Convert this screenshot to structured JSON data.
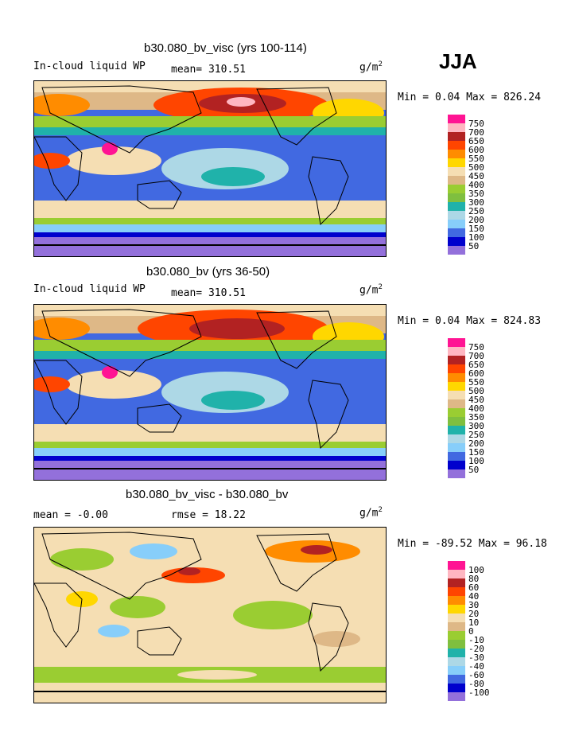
{
  "season": "JJA",
  "panels": [
    {
      "title": "b30.080_bv_visc (yrs 100-114)",
      "left_label": "In-cloud liquid WP",
      "mean_label": "mean= 310.51",
      "units_base": "g/m",
      "units_exp": "2",
      "min_label": "Min =",
      "min_value": "0.04",
      "max_label": "Max =",
      "max_value": "826.24",
      "legend_labels": [
        "750",
        "700",
        "650",
        "600",
        "550",
        "500",
        "450",
        "400",
        "350",
        "300",
        "250",
        "200",
        "150",
        "100",
        "50"
      ]
    },
    {
      "title": "b30.080_bv (yrs 36-50)",
      "left_label": "In-cloud liquid WP",
      "mean_label": "mean= 310.51",
      "units_base": "g/m",
      "units_exp": "2",
      "min_label": "Min =",
      "min_value": "0.04",
      "max_label": "Max =",
      "max_value": "824.83",
      "legend_labels": [
        "750",
        "700",
        "650",
        "600",
        "550",
        "500",
        "450",
        "400",
        "350",
        "300",
        "250",
        "200",
        "150",
        "100",
        "50"
      ]
    },
    {
      "title": "b30.080_bv_visc - b30.080_bv",
      "left_label": "mean =   -0.00",
      "mean_label": "rmse =   18.22",
      "units_base": "g/m",
      "units_exp": "2",
      "min_label": "Min =",
      "min_value": "-89.52",
      "max_label": "Max =",
      "max_value": "96.18",
      "legend_labels": [
        "100",
        "80",
        "60",
        "40",
        "30",
        "20",
        "10",
        "0",
        "-10",
        "-20",
        "-30",
        "-40",
        "-60",
        "-80",
        "-100"
      ]
    }
  ],
  "colors": {
    "legend_scale": [
      "#ff1493",
      "#ffb6c1",
      "#b22222",
      "#ff4500",
      "#ff8c00",
      "#ffd700",
      "#f5deb3",
      "#deb887",
      "#9acd32",
      "#7fbf3f",
      "#20b2aa",
      "#add8e6",
      "#87cefa",
      "#4169e1",
      "#0000cd",
      "#9370db"
    ],
    "ocean_base": "#4169e1",
    "coast": "#000000"
  },
  "chart_data": [
    {
      "type": "heatmap",
      "title": "b30.080_bv_visc (yrs 100-114)",
      "variable": "In-cloud liquid WP",
      "units": "g/m2",
      "mean": 310.51,
      "min": 0.04,
      "max": 826.24,
      "levels": [
        50,
        100,
        150,
        200,
        250,
        300,
        350,
        400,
        450,
        500,
        550,
        600,
        650,
        700,
        750
      ]
    },
    {
      "type": "heatmap",
      "title": "b30.080_bv (yrs 36-50)",
      "variable": "In-cloud liquid WP",
      "units": "g/m2",
      "mean": 310.51,
      "min": 0.04,
      "max": 824.83,
      "levels": [
        50,
        100,
        150,
        200,
        250,
        300,
        350,
        400,
        450,
        500,
        550,
        600,
        650,
        700,
        750
      ]
    },
    {
      "type": "heatmap",
      "title": "b30.080_bv_visc - b30.080_bv",
      "units": "g/m2",
      "mean": -0.0,
      "rmse": 18.22,
      "min": -89.52,
      "max": 96.18,
      "levels": [
        -100,
        -80,
        -60,
        -40,
        -30,
        -20,
        -10,
        0,
        10,
        20,
        30,
        40,
        60,
        80,
        100
      ]
    }
  ]
}
